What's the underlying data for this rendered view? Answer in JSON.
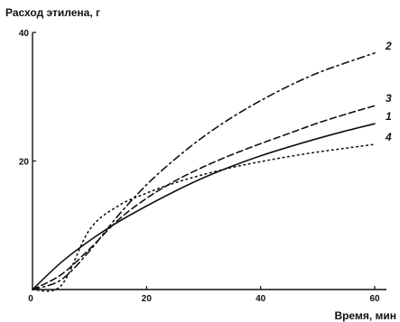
{
  "chart_data": {
    "type": "line",
    "ylabel": "Расход этилена, г",
    "xlabel": "Время, мин",
    "xlim": [
      0,
      60
    ],
    "ylim": [
      0,
      40
    ],
    "xticks": [
      0,
      20,
      40,
      60
    ],
    "yticks": [
      20,
      40
    ],
    "grid": false,
    "series": [
      {
        "name": "1",
        "line_style": "solid",
        "x": [
          0,
          5,
          10,
          15,
          20,
          25,
          30,
          35,
          40,
          45,
          50,
          55,
          60
        ],
        "y": [
          0,
          4.2,
          7.6,
          10.5,
          13,
          15.3,
          17.4,
          19.2,
          20.8,
          22.2,
          23.5,
          24.7,
          25.8
        ]
      },
      {
        "name": "2",
        "line_style": "dash-dot",
        "x": [
          0,
          5,
          10,
          15,
          20,
          25,
          30,
          35,
          40,
          45,
          50,
          55,
          60
        ],
        "y": [
          0,
          1.5,
          6,
          11.5,
          16.3,
          20.3,
          23.8,
          26.8,
          29.4,
          31.7,
          33.7,
          35.3,
          36.8
        ]
      },
      {
        "name": "3",
        "line_style": "dashed",
        "x": [
          0,
          5,
          10,
          15,
          20,
          25,
          30,
          35,
          40,
          45,
          50,
          55,
          60
        ],
        "y": [
          0,
          2.3,
          6.3,
          10.8,
          14.2,
          16.9,
          19.1,
          21,
          22.7,
          24.3,
          25.9,
          27.3,
          28.6
        ]
      },
      {
        "name": "4",
        "line_style": "dotted",
        "x": [
          0,
          5,
          10,
          15,
          20,
          25,
          30,
          35,
          40,
          45,
          50,
          55,
          60
        ],
        "y": [
          0,
          0.6,
          9.3,
          13,
          15,
          16.6,
          17.9,
          19,
          19.9,
          20.7,
          21.4,
          22,
          22.6
        ]
      }
    ]
  }
}
